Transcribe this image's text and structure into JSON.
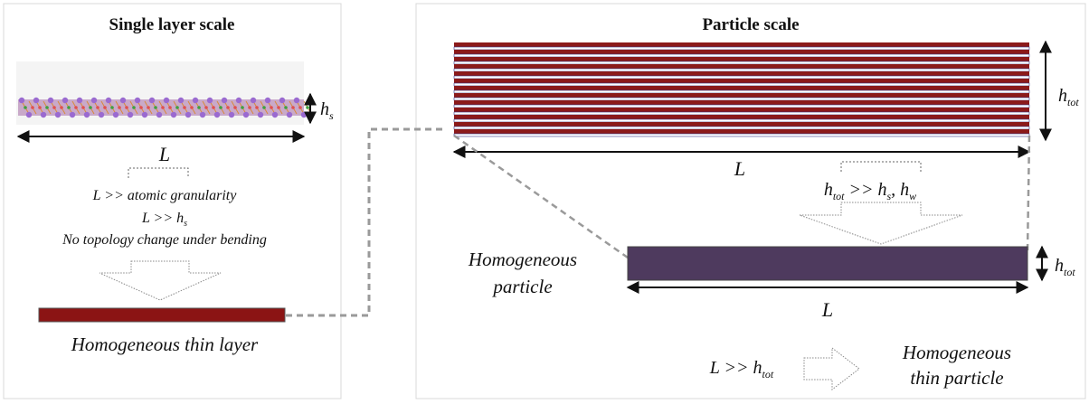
{
  "left_panel": {
    "title": "Single layer scale",
    "title_color": "#7a1a1a",
    "dim_h": {
      "base": "h",
      "sub": "s"
    },
    "dim_L": "L",
    "conditions": [
      {
        "text": "L  >> atomic granularity"
      },
      {
        "text": "L >> h",
        "sub": "s"
      },
      {
        "text": "No topology change under bending"
      }
    ],
    "result_label": "Homogeneous thin layer",
    "layer_color": "#8b1414"
  },
  "right_panel": {
    "title": "Particle scale",
    "title_color": "#4a3560",
    "stack_colors": {
      "layer": "#8b1a1a",
      "water": "#3a3a8a"
    },
    "dim_htot": {
      "base": "h",
      "sub": "tot"
    },
    "dim_L": "L",
    "condition": {
      "lhs": "h",
      "lhs_sub": "tot",
      "op": " >>  ",
      "h1": "h",
      "h1_sub": "s",
      "sep": ", ",
      "h2": "h",
      "h2_sub": "w"
    },
    "particle_label_lines": [
      "Homogeneous",
      "particle"
    ],
    "particle_color": "#4e3a5e",
    "particle_htot": {
      "base": "h",
      "sub": "tot"
    },
    "particle_L": "L",
    "final_condition": {
      "lhs": "L  >> h",
      "sub": "tot"
    },
    "final_label_lines": [
      "Homogeneous",
      "thin  particle"
    ]
  }
}
